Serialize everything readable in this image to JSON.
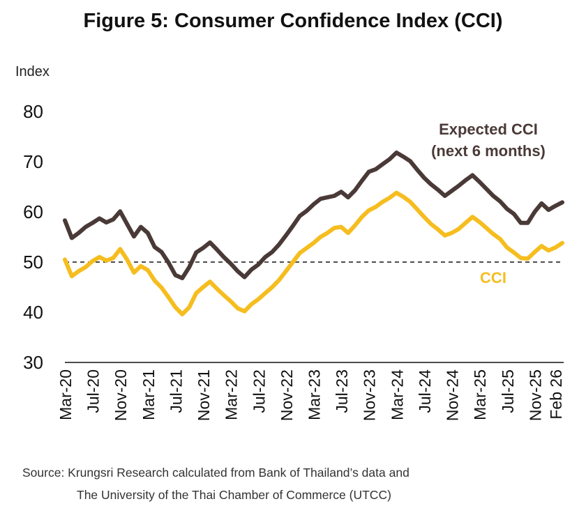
{
  "title": "Figure 5: Consumer Confidence Index (CCI)",
  "source_lines": [
    "Source: Krungsri Research calculated from Bank of Thailand’s data and",
    "The University of the Thai Chamber of Commerce (UTCC)"
  ],
  "chart_data": {
    "type": "line",
    "ylabel": "Index",
    "ylim": [
      30,
      80
    ],
    "yticks": [
      30,
      40,
      50,
      60,
      70,
      80
    ],
    "reference_line": {
      "y": 50,
      "style": "dashed"
    },
    "x_tick_labels": [
      "Mar-20",
      "Jul-20",
      "Nov-20",
      "Mar-21",
      "Jul-21",
      "Nov-21",
      "Mar-22",
      "Jul-22",
      "Nov-22",
      "Mar-23",
      "Jul-23",
      "Nov-23",
      "Mar-24",
      "Jul-24",
      "Nov-24",
      "Mar-25",
      "Jul-25",
      "Nov-25",
      "Feb 26"
    ],
    "x_tick_months": [
      0,
      4,
      8,
      12,
      16,
      20,
      24,
      28,
      32,
      36,
      40,
      44,
      48,
      52,
      56,
      60,
      64,
      68,
      71
    ],
    "x_start": "Mar-20",
    "series": [
      {
        "name": "Expected CCI (next 6 months)",
        "color": "#4a3a37",
        "values": [
          58.3,
          54.8,
          55.8,
          57.0,
          57.8,
          58.7,
          57.9,
          58.5,
          60.1,
          57.6,
          55.1,
          57.0,
          55.8,
          53.0,
          52.0,
          49.9,
          47.4,
          46.8,
          49.0,
          51.9,
          52.8,
          53.9,
          52.5,
          51.0,
          49.7,
          48.2,
          47.0,
          48.5,
          49.5,
          51.0,
          52.0,
          53.5,
          55.3,
          57.2,
          59.2,
          60.2,
          61.5,
          62.6,
          62.9,
          63.2,
          64.0,
          62.9,
          64.3,
          66.2,
          68.0,
          68.5,
          69.5,
          70.5,
          71.8,
          71.0,
          70.1,
          68.4,
          66.8,
          65.5,
          64.4,
          63.2,
          64.2,
          65.2,
          66.3,
          67.3,
          66.0,
          64.6,
          63.2,
          62.1,
          60.6,
          59.6,
          57.8,
          57.8,
          60.0,
          61.7,
          60.4,
          61.2,
          61.9
        ]
      },
      {
        "name": "CCI",
        "color": "#f5bd1f",
        "values": [
          50.5,
          47.2,
          48.2,
          49.0,
          50.2,
          51.0,
          50.3,
          50.8,
          52.6,
          50.5,
          47.9,
          49.2,
          48.4,
          46.3,
          44.9,
          43.0,
          41.0,
          39.6,
          41.0,
          43.8,
          45.0,
          46.1,
          44.7,
          43.4,
          42.2,
          40.8,
          40.2,
          41.6,
          42.6,
          43.8,
          45.0,
          46.4,
          48.2,
          50.0,
          51.8,
          52.8,
          53.8,
          55.0,
          55.8,
          56.8,
          57.0,
          55.8,
          57.3,
          59.0,
          60.3,
          61.0,
          62.0,
          62.8,
          63.8,
          63.0,
          62.0,
          60.5,
          59.0,
          57.6,
          56.5,
          55.3,
          55.8,
          56.6,
          57.8,
          59.0,
          58.0,
          56.8,
          55.6,
          54.6,
          52.9,
          51.9,
          50.8,
          50.7,
          52.0,
          53.2,
          52.3,
          52.9,
          53.8
        ]
      }
    ],
    "annotations": [
      "Expected CCI",
      "(next 6 months)",
      "CCI"
    ]
  }
}
